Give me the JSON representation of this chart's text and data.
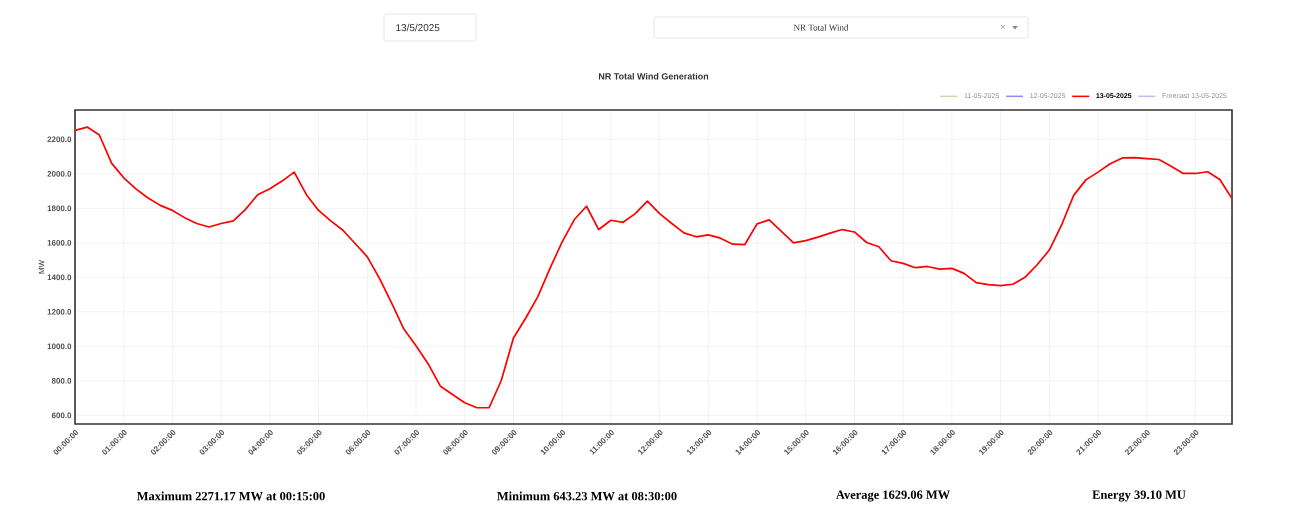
{
  "chart_data": {
    "type": "line",
    "title": "NR Total Wind Generation",
    "ylabel": "MW",
    "x": [
      0,
      0.25,
      0.5,
      0.75,
      1,
      1.25,
      1.5,
      1.75,
      2,
      2.25,
      2.5,
      2.75,
      3,
      3.25,
      3.5,
      3.75,
      4,
      4.25,
      4.5,
      4.75,
      5,
      5.25,
      5.5,
      5.75,
      6,
      6.25,
      6.5,
      6.75,
      7,
      7.25,
      7.5,
      7.75,
      8,
      8.25,
      8.5,
      8.75,
      9,
      9.25,
      9.5,
      9.75,
      10,
      10.25,
      10.5,
      10.75,
      11,
      11.25,
      11.5,
      11.75,
      12,
      12.25,
      12.5,
      12.75,
      13,
      13.25,
      13.5,
      13.75,
      14,
      14.25,
      14.5,
      14.75,
      15,
      15.25,
      15.5,
      15.75,
      16,
      16.25,
      16.5,
      16.75,
      17,
      17.25,
      17.5,
      17.75,
      18,
      18.25,
      18.5,
      18.75,
      19,
      19.25,
      19.5,
      19.75,
      20,
      20.25,
      20.5,
      20.75,
      21,
      21.25,
      21.5,
      21.75,
      22,
      22.25,
      22.5,
      22.75,
      23,
      23.25,
      23.5,
      23.75
    ],
    "series": [
      {
        "name": "11-05-2025",
        "color": "#c5dca0",
        "values": [
          null,
          null,
          null,
          null,
          null,
          null,
          null,
          null,
          null,
          null,
          null,
          null,
          null,
          null,
          null,
          null,
          null,
          null,
          null,
          null,
          null,
          null,
          null,
          null,
          null,
          null,
          null,
          null,
          null,
          null,
          null,
          null,
          null,
          null,
          null,
          null,
          null,
          null,
          null,
          null,
          null,
          null,
          null,
          null,
          null,
          null,
          null,
          null,
          null,
          null,
          null,
          null,
          null,
          null,
          null,
          null,
          null,
          null,
          null,
          null,
          null,
          null,
          null,
          null,
          null,
          null,
          null,
          null,
          null,
          null,
          null,
          null,
          null,
          null,
          null,
          null,
          null,
          null,
          null,
          null,
          null,
          null,
          null,
          null,
          null,
          null,
          null,
          null,
          null,
          null,
          null,
          null,
          null,
          null,
          null,
          null
        ]
      },
      {
        "name": "12-05-2025",
        "color": "#8c8cff",
        "values": [
          null,
          null,
          null,
          null,
          null,
          null,
          null,
          null,
          null,
          null,
          null,
          null,
          null,
          null,
          null,
          null,
          null,
          null,
          null,
          null,
          null,
          null,
          null,
          null,
          null,
          null,
          null,
          null,
          null,
          null,
          null,
          null,
          null,
          null,
          null,
          null,
          null,
          null,
          null,
          null,
          null,
          null,
          null,
          null,
          null,
          null,
          null,
          null,
          null,
          null,
          null,
          null,
          null,
          null,
          null,
          null,
          null,
          null,
          null,
          null,
          null,
          null,
          null,
          null,
          null,
          null,
          null,
          null,
          null,
          null,
          null,
          null,
          null,
          null,
          null,
          null,
          null,
          null,
          null,
          null,
          null,
          null,
          null,
          null,
          null,
          null,
          null,
          null,
          null,
          null,
          null,
          null,
          null,
          null,
          null,
          null
        ]
      },
      {
        "name": "13-05-2025",
        "color": "#ff0000",
        "values": [
          2252,
          2271,
          2225,
          2062,
          1977,
          1913,
          1860,
          1817,
          1788,
          1746,
          1712,
          1692,
          1712,
          1727,
          1794,
          1879,
          1913,
          1958,
          2010,
          1879,
          1788,
          1727,
          1673,
          1596,
          1519,
          1394,
          1250,
          1100,
          1004,
          898,
          769,
          721,
          673,
          644,
          644,
          802,
          1048,
          1163,
          1288,
          1452,
          1606,
          1735,
          1812,
          1677,
          1731,
          1719,
          1769,
          1842,
          1769,
          1712,
          1658,
          1635,
          1646,
          1627,
          1592,
          1590,
          1710,
          1733,
          1667,
          1600,
          1613,
          1633,
          1656,
          1677,
          1663,
          1602,
          1577,
          1496,
          1481,
          1456,
          1463,
          1448,
          1452,
          1423,
          1369,
          1358,
          1352,
          1360,
          1400,
          1473,
          1558,
          1702,
          1875,
          1965,
          2010,
          2058,
          2092,
          2094,
          2088,
          2083,
          2044,
          2002,
          2002,
          2012,
          1967,
          1856
        ]
      },
      {
        "name": "Forecast 13-05-2025",
        "color": "#c8b4f0",
        "values": [
          null,
          null,
          null,
          null,
          null,
          null,
          null,
          null,
          null,
          null,
          null,
          null,
          null,
          null,
          null,
          null,
          null,
          null,
          null,
          null,
          null,
          null,
          null,
          null,
          null,
          null,
          null,
          null,
          null,
          null,
          null,
          null,
          null,
          null,
          null,
          null,
          null,
          null,
          null,
          null,
          null,
          null,
          null,
          null,
          null,
          null,
          null,
          null,
          null,
          null,
          null,
          null,
          null,
          null,
          null,
          null,
          null,
          null,
          null,
          null,
          null,
          null,
          null,
          null,
          null,
          null,
          null,
          null,
          null,
          null,
          null,
          null,
          null,
          null,
          null,
          null,
          null,
          null,
          null,
          null,
          null,
          null,
          null,
          null,
          null,
          null,
          null,
          null,
          null,
          null,
          null,
          null,
          null,
          null,
          null,
          null
        ]
      }
    ],
    "xlim": [
      0,
      23.75
    ],
    "ylim": [
      550,
      2370
    ],
    "xticks": [
      {
        "value": 0,
        "label": "00:00:00"
      },
      {
        "value": 1,
        "label": "01:00:00"
      },
      {
        "value": 2,
        "label": "02:00:00"
      },
      {
        "value": 3,
        "label": "03:00:00"
      },
      {
        "value": 4,
        "label": "04:00:00"
      },
      {
        "value": 5,
        "label": "05:00:00"
      },
      {
        "value": 6,
        "label": "06:00:00"
      },
      {
        "value": 7,
        "label": "07:00:00"
      },
      {
        "value": 8,
        "label": "08:00:00"
      },
      {
        "value": 9,
        "label": "09:00:00"
      },
      {
        "value": 10,
        "label": "10:00:00"
      },
      {
        "value": 11,
        "label": "11:00:00"
      },
      {
        "value": 12,
        "label": "12:00:00"
      },
      {
        "value": 13,
        "label": "13:00:00"
      },
      {
        "value": 14,
        "label": "14:00:00"
      },
      {
        "value": 15,
        "label": "15:00:00"
      },
      {
        "value": 16,
        "label": "16:00:00"
      },
      {
        "value": 17,
        "label": "17:00:00"
      },
      {
        "value": 18,
        "label": "18:00:00"
      },
      {
        "value": 19,
        "label": "19:00:00"
      },
      {
        "value": 20,
        "label": "20:00:00"
      },
      {
        "value": 21,
        "label": "21:00:00"
      },
      {
        "value": 22,
        "label": "22:00:00"
      },
      {
        "value": 23,
        "label": "23:00:00"
      }
    ],
    "yticks": [
      {
        "value": 600,
        "label": "600.0"
      },
      {
        "value": 800,
        "label": "800.0"
      },
      {
        "value": 1000,
        "label": "1000.0"
      },
      {
        "value": 1200,
        "label": "1200.0"
      },
      {
        "value": 1400,
        "label": "1400.0"
      },
      {
        "value": 1600,
        "label": "1600.0"
      },
      {
        "value": 1800,
        "label": "1800.0"
      },
      {
        "value": 2000,
        "label": "2000.0"
      },
      {
        "value": 2200,
        "label": "2200.0"
      }
    ],
    "grid": true,
    "legend": "top right",
    "annotations": [
      "13/5/2025",
      "NR Total Wind",
      "Maximum 2271.17 MW at 00:15:00",
      "Minimum 643.23 MW at 08:30:00",
      "Average 1629.06 MW",
      "Energy 39.10 MU"
    ]
  }
}
